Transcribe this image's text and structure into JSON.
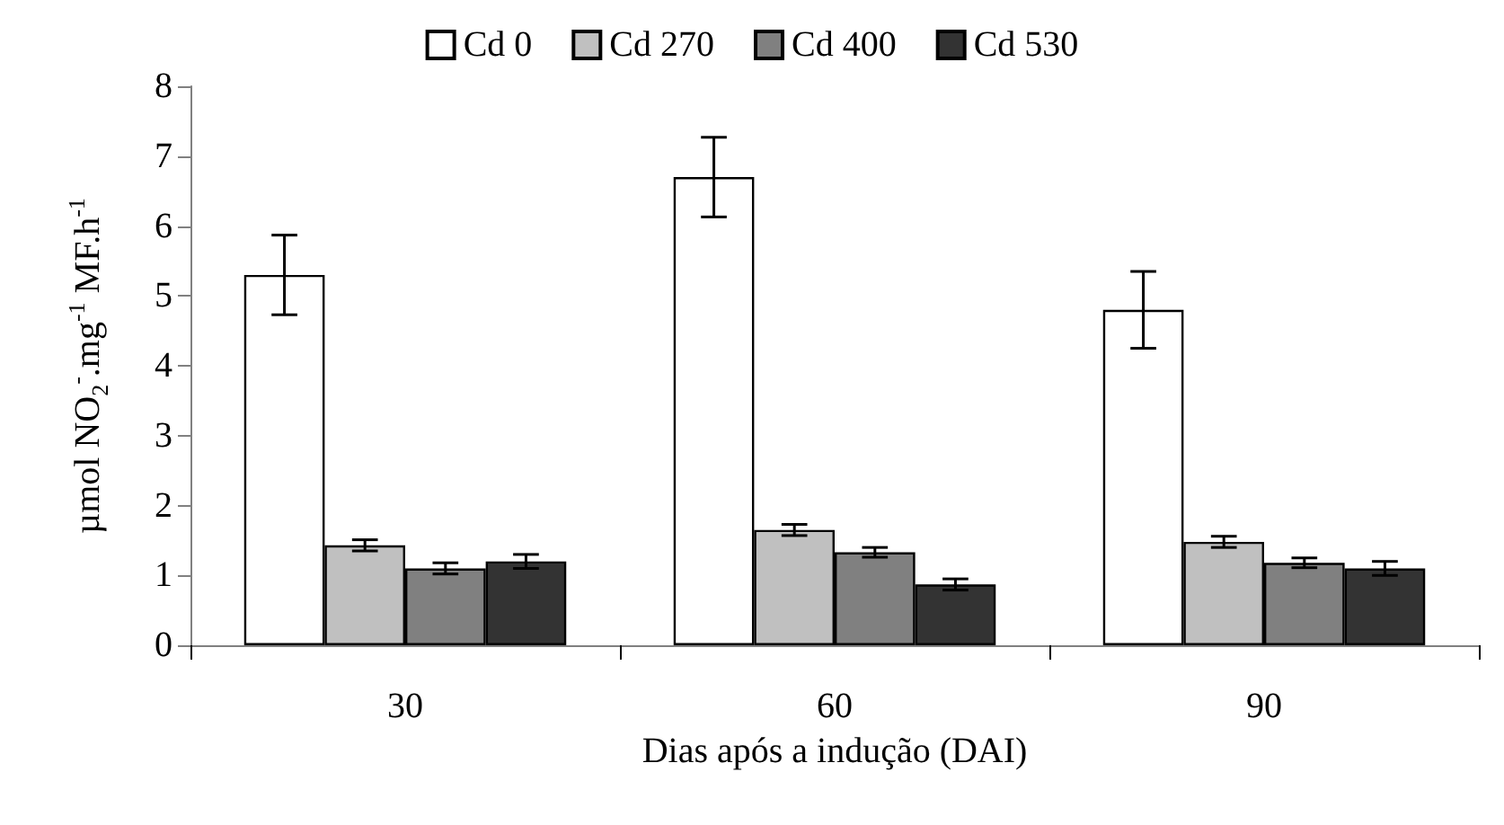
{
  "chart_data": {
    "type": "bar",
    "xlabel": "Dias após a indução (DAI)",
    "ylabel": "µmol NO$_{2}$$^{-}$.mg$^{-1}$ MF.h$^{-1}$",
    "categories": [
      "30",
      "60",
      "90"
    ],
    "series": [
      {
        "name": "Cd 0",
        "color": "#ffffff",
        "values": [
          5.3,
          6.7,
          4.8
        ],
        "errors": [
          0.57,
          0.57,
          0.55
        ]
      },
      {
        "name": "Cd 270",
        "color": "#c0c0c0",
        "values": [
          1.43,
          1.65,
          1.48
        ],
        "errors": [
          0.08,
          0.08,
          0.08
        ]
      },
      {
        "name": "Cd 400",
        "color": "#808080",
        "values": [
          1.1,
          1.33,
          1.18
        ],
        "errors": [
          0.08,
          0.07,
          0.07
        ]
      },
      {
        "name": "Cd 530",
        "color": "#333333",
        "values": [
          1.2,
          0.87,
          1.1
        ],
        "errors": [
          0.1,
          0.08,
          0.1
        ]
      }
    ],
    "ylim": [
      0,
      8
    ],
    "yticks": [
      0,
      1,
      2,
      3,
      4,
      5,
      6,
      7,
      8
    ],
    "grid": false,
    "legend": "top"
  }
}
